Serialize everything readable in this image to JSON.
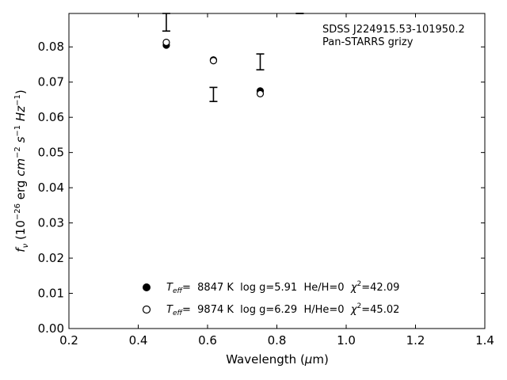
{
  "chart_data": {
    "type": "scatter",
    "title": "",
    "xlabel": "Wavelength (μm)",
    "ylabel": "f_ν (10^-26 erg cm^-2 s^-1 Hz^-1)",
    "xlim": [
      0.2,
      1.4
    ],
    "ylim": [
      0.0,
      0.0895
    ],
    "x_ticks": [
      "0.2",
      "0.4",
      "0.6",
      "0.8",
      "1.0",
      "1.2",
      "1.4"
    ],
    "y_ticks": [
      "0.00",
      "0.01",
      "0.02",
      "0.03",
      "0.04",
      "0.05",
      "0.06",
      "0.07",
      "0.08"
    ],
    "ticks_inward": true,
    "grid": false,
    "annotation": [
      "SDSS J224915.53-101950.2",
      "Pan-STARRS grizy"
    ],
    "legend_position": "lower-center",
    "observed": {
      "x": [
        0.481,
        0.617,
        0.752,
        0.866
      ],
      "y_low": [
        0.0845,
        0.0645,
        0.0735,
        0.0895
      ],
      "y_high": [
        0.0895,
        0.0685,
        0.078,
        0.0895
      ]
    },
    "series": [
      {
        "marker": "filled-circle",
        "teff_label": "T",
        "teff_sub": "eff",
        "legend_rest": "=  8847 K  log g=5.91  He/H=0  ",
        "chi_label": "χ",
        "chi_sup": "2",
        "chi_value": "=42.09",
        "x": [
          0.481,
          0.617,
          0.752
        ],
        "y": [
          0.0805,
          0.0763,
          0.0675
        ]
      },
      {
        "marker": "open-circle",
        "teff_label": "T",
        "teff_sub": "eff",
        "legend_rest": "=  9874 K  log g=6.29  H/He=0  ",
        "chi_label": "χ",
        "chi_sup": "2",
        "chi_value": "=45.02",
        "x": [
          0.481,
          0.617,
          0.752
        ],
        "y": [
          0.0813,
          0.0761,
          0.0667
        ]
      }
    ]
  }
}
